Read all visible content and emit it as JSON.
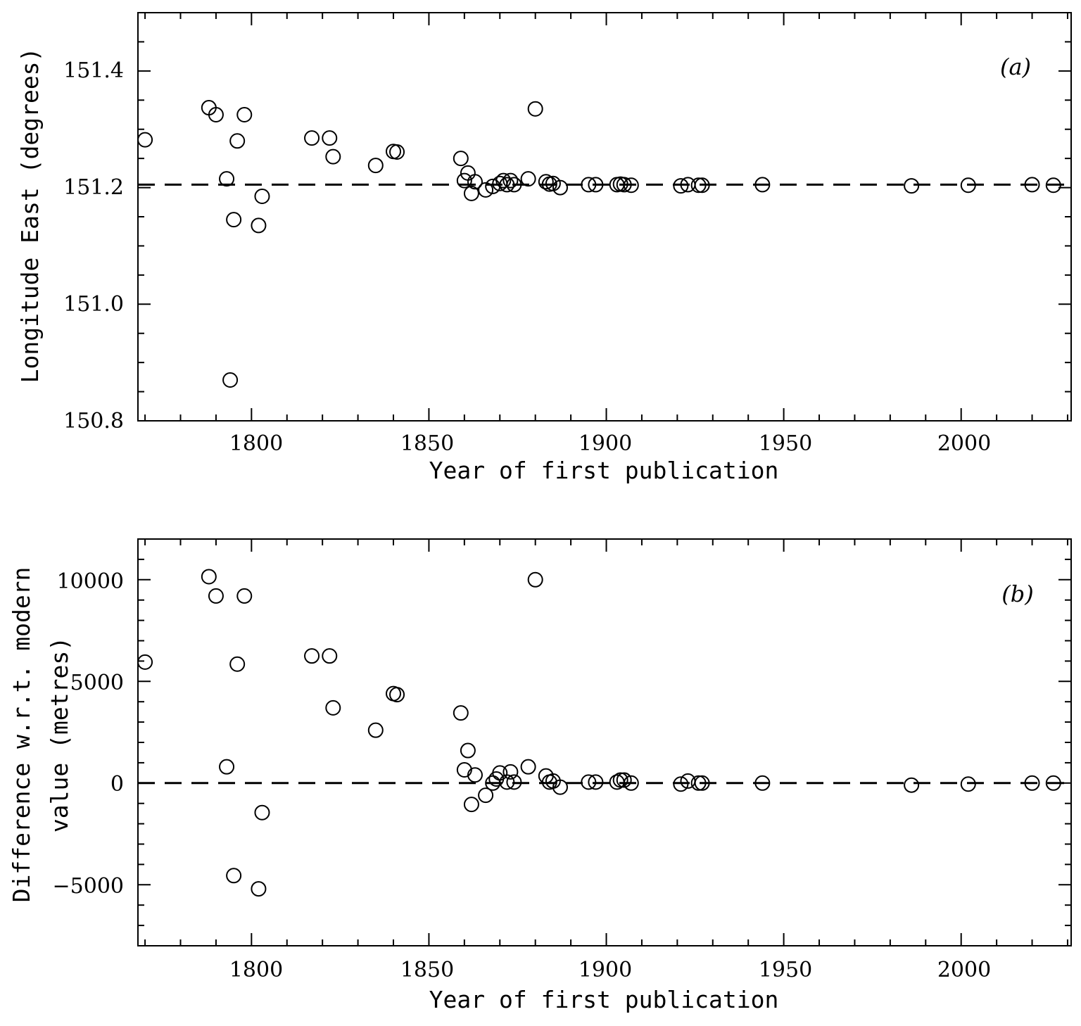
{
  "chart_data": [
    {
      "type": "scatter",
      "panel_label": "(a)",
      "xlabel": "Year of first publication",
      "ylabel": "Longitude East (degrees)",
      "xlim": [
        1768,
        2031
      ],
      "ylim": [
        150.8,
        151.5
      ],
      "x_ticks": [
        1800,
        1850,
        1900,
        1950,
        2000
      ],
      "x_tick_labels": [
        "1800",
        "1850",
        "1900",
        "1950",
        "2000"
      ],
      "y_ticks": [
        150.8,
        151.0,
        151.2,
        151.4
      ],
      "y_tick_labels": [
        "150.8",
        "151.0",
        "151.2",
        "151.4"
      ],
      "reference_line": 151.205,
      "legend": "none",
      "points": [
        [
          1770,
          151.282
        ],
        [
          1788,
          151.337
        ],
        [
          1790,
          151.325
        ],
        [
          1793,
          151.215
        ],
        [
          1794,
          150.87
        ],
        [
          1795,
          151.145
        ],
        [
          1796,
          151.28
        ],
        [
          1798,
          151.325
        ],
        [
          1802,
          151.135
        ],
        [
          1803,
          151.185
        ],
        [
          1817,
          151.285
        ],
        [
          1822,
          151.285
        ],
        [
          1823,
          151.253
        ],
        [
          1835,
          151.238
        ],
        [
          1840,
          151.262
        ],
        [
          1841,
          151.261
        ],
        [
          1859,
          151.25
        ],
        [
          1860,
          151.212
        ],
        [
          1861,
          151.225
        ],
        [
          1862,
          151.19
        ],
        [
          1863,
          151.21
        ],
        [
          1866,
          151.196
        ],
        [
          1868,
          151.202
        ],
        [
          1870,
          151.207
        ],
        [
          1871,
          151.212
        ],
        [
          1872,
          151.205
        ],
        [
          1873,
          151.212
        ],
        [
          1874,
          151.205
        ],
        [
          1878,
          151.215
        ],
        [
          1880,
          151.335
        ],
        [
          1883,
          151.21
        ],
        [
          1884,
          151.206
        ],
        [
          1885,
          151.207
        ],
        [
          1887,
          151.2
        ],
        [
          1895,
          151.205
        ],
        [
          1897,
          151.205
        ],
        [
          1903,
          151.205
        ],
        [
          1904,
          151.206
        ],
        [
          1905,
          151.205
        ],
        [
          1907,
          151.204
        ],
        [
          1921,
          151.203
        ],
        [
          1923,
          151.205
        ],
        [
          1926,
          151.204
        ],
        [
          1927,
          151.204
        ],
        [
          1944,
          151.205
        ],
        [
          1986,
          151.203
        ],
        [
          2002,
          151.204
        ],
        [
          2020,
          151.205
        ],
        [
          2026,
          151.204
        ]
      ]
    },
    {
      "type": "scatter",
      "panel_label": "(b)",
      "xlabel": "Year of first publication",
      "ylabel_lines": [
        "Difference w.r.t. modern",
        "value (metres)"
      ],
      "xlim": [
        1768,
        2031
      ],
      "ylim": [
        -8000,
        12000
      ],
      "x_ticks": [
        1800,
        1850,
        1900,
        1950,
        2000
      ],
      "x_tick_labels": [
        "1800",
        "1850",
        "1900",
        "1950",
        "2000"
      ],
      "y_ticks": [
        -5000,
        0,
        5000,
        10000
      ],
      "y_tick_labels": [
        "−5000",
        "0",
        "5000",
        "10000"
      ],
      "reference_line": 0,
      "legend": "none",
      "points": [
        [
          1770,
          5950
        ],
        [
          1788,
          10150
        ],
        [
          1790,
          9200
        ],
        [
          1793,
          800
        ],
        [
          1795,
          -4550
        ],
        [
          1796,
          5850
        ],
        [
          1798,
          9200
        ],
        [
          1802,
          -5200
        ],
        [
          1803,
          -1450
        ],
        [
          1817,
          6250
        ],
        [
          1822,
          6250
        ],
        [
          1823,
          3700
        ],
        [
          1835,
          2600
        ],
        [
          1840,
          4400
        ],
        [
          1841,
          4350
        ],
        [
          1859,
          3450
        ],
        [
          1860,
          650
        ],
        [
          1861,
          1600
        ],
        [
          1862,
          -1050
        ],
        [
          1863,
          400
        ],
        [
          1866,
          -600
        ],
        [
          1868,
          0
        ],
        [
          1869,
          200
        ],
        [
          1870,
          500
        ],
        [
          1872,
          50
        ],
        [
          1873,
          550
        ],
        [
          1874,
          50
        ],
        [
          1878,
          800
        ],
        [
          1880,
          10000
        ],
        [
          1883,
          350
        ],
        [
          1884,
          50
        ],
        [
          1885,
          100
        ],
        [
          1887,
          -200
        ],
        [
          1895,
          50
        ],
        [
          1897,
          50
        ],
        [
          1903,
          50
        ],
        [
          1904,
          150
        ],
        [
          1905,
          150
        ],
        [
          1907,
          0
        ],
        [
          1921,
          -50
        ],
        [
          1923,
          100
        ],
        [
          1926,
          0
        ],
        [
          1927,
          0
        ],
        [
          1944,
          0
        ],
        [
          1986,
          -100
        ],
        [
          2002,
          -50
        ],
        [
          2020,
          0
        ],
        [
          2026,
          0
        ]
      ]
    }
  ]
}
